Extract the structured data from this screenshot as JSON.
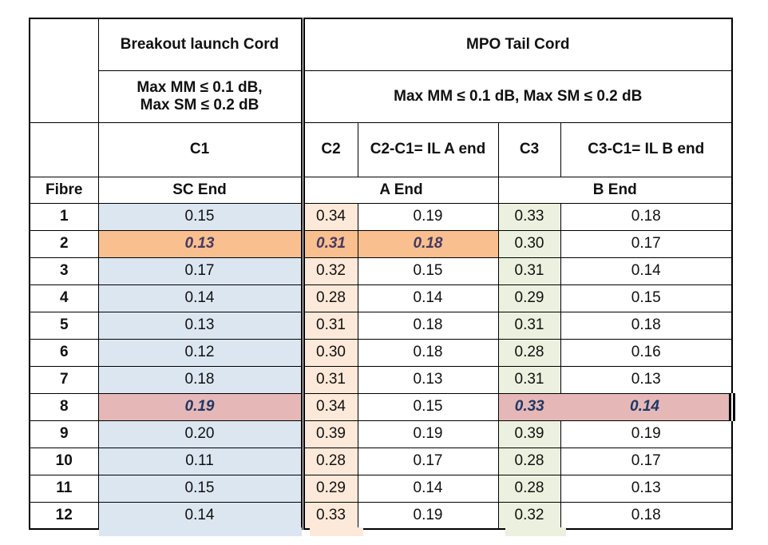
{
  "table": {
    "header": {
      "breakout_title": "Breakout launch Cord",
      "breakout_spec": "Max MM ≤  0.1 dB,\nMax SM  ≤ 0.2 dB",
      "mpo_title": "MPO Tail Cord",
      "mpo_spec": "Max MM ≤  0.1 dB,   Max SM  ≤ 0.2 dB",
      "c1": "C1",
      "c2": "C2",
      "c2_minus_c1": "C2-C1= IL A end",
      "c3": "C3",
      "c3_minus_c1": "C3-C1= IL B end",
      "fibre": "Fibre",
      "sc_end": "SC End",
      "a_end": "A End",
      "b_end": "B End"
    },
    "rows": [
      {
        "fibre": "1",
        "c1": "0.15",
        "c2": "0.34",
        "il_a": "0.19",
        "c3": "0.33",
        "il_b": "0.18",
        "highlight": null
      },
      {
        "fibre": "2",
        "c1": "0.13",
        "c2": "0.31",
        "il_a": "0.18",
        "c3": "0.30",
        "il_b": "0.17",
        "highlight": "orange"
      },
      {
        "fibre": "3",
        "c1": "0.17",
        "c2": "0.32",
        "il_a": "0.15",
        "c3": "0.31",
        "il_b": "0.14",
        "highlight": null
      },
      {
        "fibre": "4",
        "c1": "0.14",
        "c2": "0.28",
        "il_a": "0.14",
        "c3": "0.29",
        "il_b": "0.15",
        "highlight": null
      },
      {
        "fibre": "5",
        "c1": "0.13",
        "c2": "0.31",
        "il_a": "0.18",
        "c3": "0.31",
        "il_b": "0.18",
        "highlight": null
      },
      {
        "fibre": "6",
        "c1": "0.12",
        "c2": "0.30",
        "il_a": "0.18",
        "c3": "0.28",
        "il_b": "0.16",
        "highlight": null
      },
      {
        "fibre": "7",
        "c1": "0.18",
        "c2": "0.31",
        "il_a": "0.13",
        "c3": "0.31",
        "il_b": "0.13",
        "highlight": null
      },
      {
        "fibre": "8",
        "c1": "0.19",
        "c2": "0.34",
        "il_a": "0.15",
        "c3": "0.33",
        "il_b": "0.14",
        "highlight": "rose"
      },
      {
        "fibre": "9",
        "c1": "0.20",
        "c2": "0.39",
        "il_a": "0.19",
        "c3": "0.39",
        "il_b": "0.19",
        "highlight": null
      },
      {
        "fibre": "10",
        "c1": "0.11",
        "c2": "0.28",
        "il_a": "0.17",
        "c3": "0.28",
        "il_b": "0.17",
        "highlight": null
      },
      {
        "fibre": "11",
        "c1": "0.15",
        "c2": "0.29",
        "il_a": "0.14",
        "c3": "0.28",
        "il_b": "0.13",
        "highlight": null
      },
      {
        "fibre": "12",
        "c1": "0.14",
        "c2": "0.33",
        "il_a": "0.19",
        "c3": "0.32",
        "il_b": "0.18",
        "highlight": null
      }
    ]
  },
  "colors": {
    "blue": "#dce6f1",
    "peach": "#fde9d9",
    "green": "#ebf1de",
    "orange": "#fabf8f",
    "rose": "#e5b8b7",
    "hl-orange-text": "#433a63",
    "hl-rose-text": "#203764",
    "border": "#000000"
  }
}
